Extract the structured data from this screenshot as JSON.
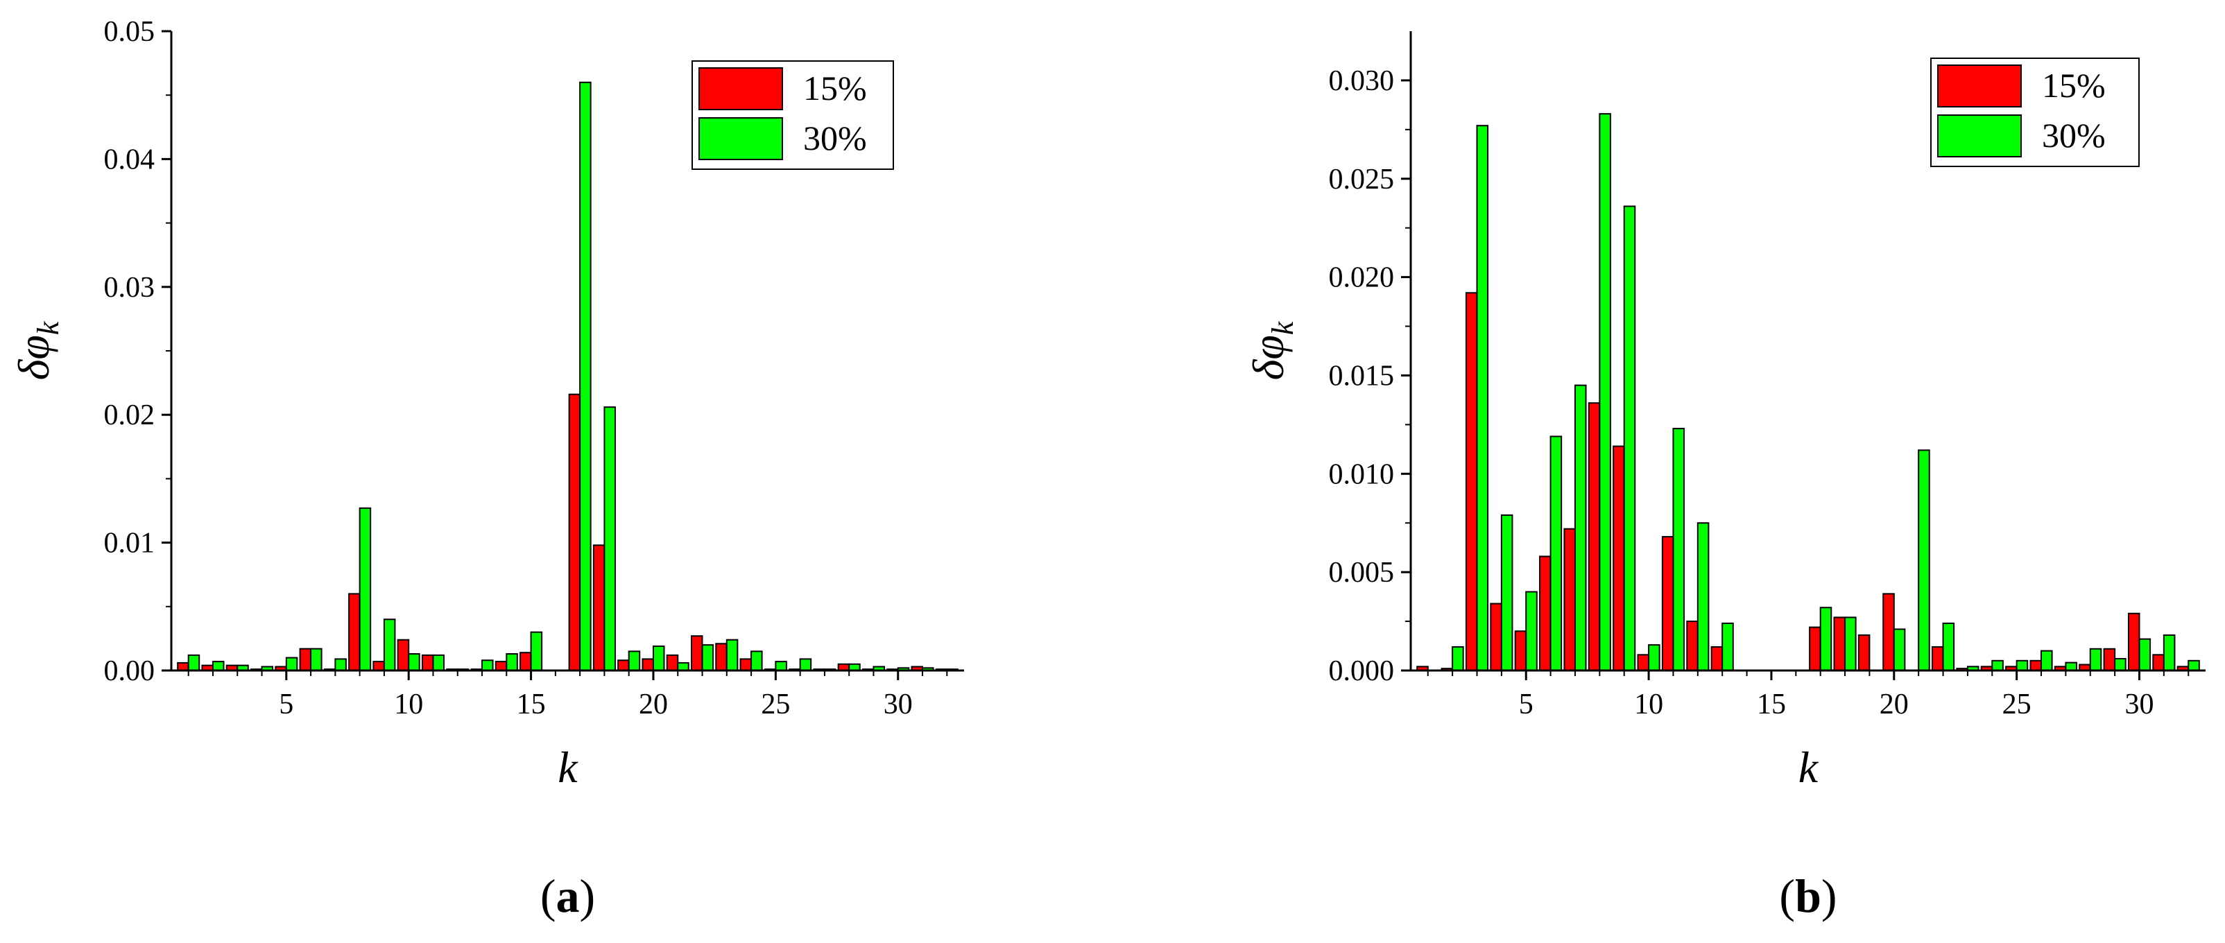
{
  "chart_data": [
    {
      "type": "bar",
      "panel_label": "(a)",
      "panel_letter": "a",
      "xlabel": "k",
      "ylabel": "δφ",
      "ylabel_subscript": "k",
      "ylim": [
        0,
        0.05
      ],
      "yticks": [
        "0.00",
        "0.01",
        "0.02",
        "0.03",
        "0.04",
        "0.05"
      ],
      "xticks": [
        "5",
        "10",
        "15",
        "20",
        "25",
        "30"
      ],
      "xlim": [
        0.3,
        32.7
      ],
      "legend_position": "top-right",
      "colors": [
        "#ff0000",
        "#00ff00"
      ],
      "x": [
        1,
        2,
        3,
        4,
        5,
        6,
        7,
        8,
        9,
        10,
        11,
        12,
        13,
        14,
        15,
        16,
        17,
        18,
        19,
        20,
        21,
        22,
        23,
        24,
        25,
        26,
        27,
        28,
        29,
        30,
        31,
        32
      ],
      "series": [
        {
          "name": "15%",
          "values": [
            0.0006,
            0.0004,
            0.0004,
            0.0001,
            0.0003,
            0.0017,
            0.0001,
            0.006,
            0.0007,
            0.0024,
            0.0012,
            0.0001,
            0.0001,
            0.0007,
            0.0014,
            0.0,
            0.0216,
            0.0098,
            0.0008,
            0.0009,
            0.0012,
            0.0027,
            0.0021,
            0.0009,
            0.0001,
            0.0001,
            0.0001,
            0.0005,
            0.0001,
            0.0001,
            0.0003,
            0.0001
          ]
        },
        {
          "name": "30%",
          "values": [
            0.0012,
            0.0007,
            0.0004,
            0.0003,
            0.001,
            0.0017,
            0.0009,
            0.0127,
            0.004,
            0.0013,
            0.0012,
            0.0001,
            0.0008,
            0.0013,
            0.003,
            0.0,
            0.046,
            0.0206,
            0.0015,
            0.0019,
            0.0006,
            0.002,
            0.0024,
            0.0015,
            0.0007,
            0.0009,
            0.0001,
            0.0005,
            0.0003,
            0.0002,
            0.0002,
            0.0001
          ]
        }
      ]
    },
    {
      "type": "bar",
      "panel_label": "(b)",
      "panel_letter": "b",
      "xlabel": "k",
      "ylabel": "δφ",
      "ylabel_subscript": "k",
      "ylim": [
        0,
        0.0325
      ],
      "yticks": [
        "0.000",
        "0.005",
        "0.010",
        "0.015",
        "0.020",
        "0.025",
        "0.030"
      ],
      "xticks": [
        "5",
        "10",
        "15",
        "20",
        "25",
        "30"
      ],
      "xlim": [
        0.3,
        32.7
      ],
      "legend_position": "top-right",
      "colors": [
        "#ff0000",
        "#00ff00"
      ],
      "x": [
        1,
        2,
        3,
        4,
        5,
        6,
        7,
        8,
        9,
        10,
        11,
        12,
        13,
        14,
        15,
        16,
        17,
        18,
        19,
        20,
        21,
        22,
        23,
        24,
        25,
        26,
        27,
        28,
        29,
        30,
        31,
        32
      ],
      "series": [
        {
          "name": "15%",
          "values": [
            0.0002,
            0.0001,
            0.0192,
            0.0034,
            0.002,
            0.0058,
            0.0072,
            0.0136,
            0.0114,
            0.0008,
            0.0068,
            0.0025,
            0.0012,
            0.0,
            0.0,
            0.0,
            0.0022,
            0.0027,
            0.0018,
            0.0039,
            0.0,
            0.0012,
            0.0001,
            0.0002,
            0.0002,
            0.0005,
            0.0002,
            0.0003,
            0.0011,
            0.0029,
            0.0008,
            0.0002
          ]
        },
        {
          "name": "30%",
          "values": [
            0.0,
            0.0012,
            0.0277,
            0.0079,
            0.004,
            0.0119,
            0.0145,
            0.0283,
            0.0236,
            0.0013,
            0.0123,
            0.0075,
            0.0024,
            0.0,
            0.0,
            0.0,
            0.0032,
            0.0027,
            0.0,
            0.0021,
            0.0112,
            0.0024,
            0.0002,
            0.0005,
            0.0005,
            0.001,
            0.0004,
            0.0011,
            0.0006,
            0.0016,
            0.0018,
            0.0005
          ]
        }
      ]
    }
  ]
}
